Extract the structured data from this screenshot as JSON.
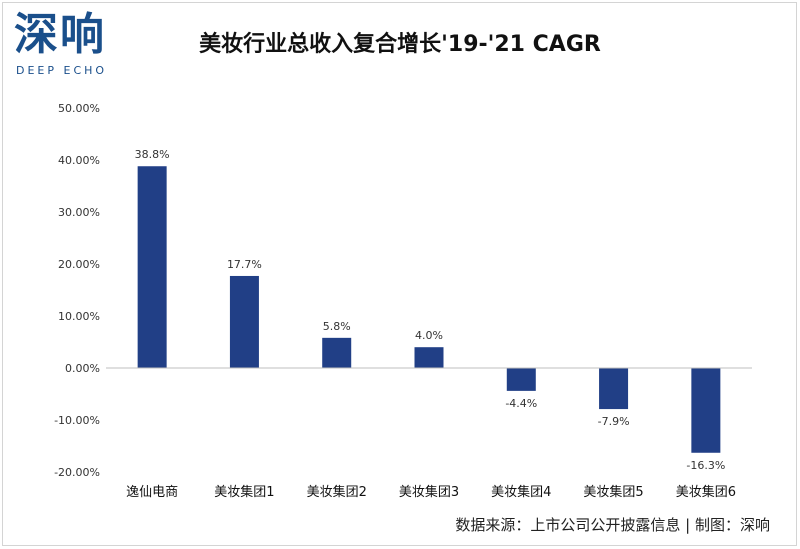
{
  "header": {
    "logo_text": "深响",
    "logo_subtext": "DEEP ECHO",
    "title": "美妆行业总收入复合增长'19-'21 CAGR"
  },
  "footer": {
    "source": "数据来源：上市公司公开披露信息 | 制图：深响"
  },
  "colors": {
    "bar": "#213f86",
    "axis": "#bfbfbf"
  },
  "chart_data": {
    "type": "bar",
    "title": "美妆行业总收入复合增长'19-'21 CAGR",
    "xlabel": "",
    "ylabel": "",
    "categories": [
      "逸仙电商",
      "美妆集团1",
      "美妆集团2",
      "美妆集团3",
      "美妆集团4",
      "美妆集团5",
      "美妆集团6"
    ],
    "values": [
      38.8,
      17.7,
      5.8,
      4.0,
      -4.4,
      -7.9,
      -16.3
    ],
    "value_labels": [
      "38.8%",
      "17.7%",
      "5.8%",
      "4.0%",
      "-4.4%",
      "-7.9%",
      "-16.3%"
    ],
    "ylim": [
      -20,
      50
    ],
    "yticks": [
      50,
      40,
      30,
      20,
      10,
      0,
      -10,
      -20
    ],
    "ytick_labels": [
      "50.00%",
      "40.00%",
      "30.00%",
      "20.00%",
      "10.00%",
      "0.00%",
      "-10.00%",
      "-20.00%"
    ],
    "grid": false,
    "legend": "none"
  }
}
